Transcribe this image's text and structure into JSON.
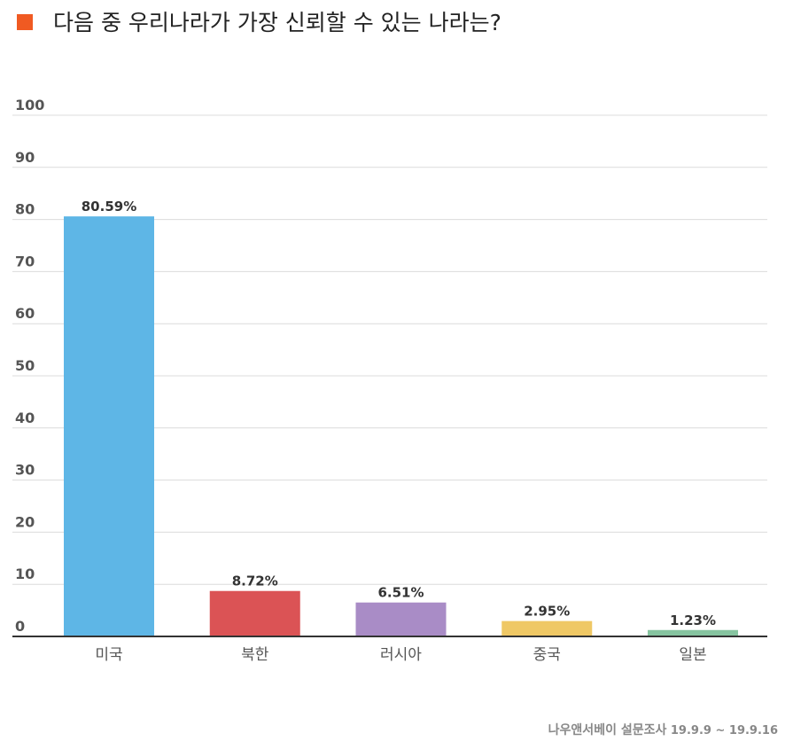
{
  "title": "다음 중 우리나라가 가장 신뢰할 수 있는 나라는?",
  "accent_color": "#F05A22",
  "source": {
    "org": "나우앤서베이 설문조사",
    "period": "19.9.9 ~ 19.9.16"
  },
  "chart_data": {
    "type": "bar",
    "title": "다음 중 우리나라가 가장 신뢰할 수 있는 나라는?",
    "categories": [
      "미국",
      "북한",
      "러시아",
      "중국",
      "일본"
    ],
    "values": [
      80.59,
      8.72,
      6.51,
      2.95,
      1.23
    ],
    "value_labels": [
      "80.59%",
      "8.72%",
      "6.51%",
      "2.95%",
      "1.23%"
    ],
    "colors": [
      "#5EB6E6",
      "#DB5355",
      "#A98CC6",
      "#EFC865",
      "#86C4A0"
    ],
    "ylim": [
      0,
      100
    ],
    "yticks": [
      "0",
      "10",
      "20",
      "30",
      "40",
      "50",
      "60",
      "70",
      "80",
      "90",
      "100"
    ],
    "grid": true,
    "legend": "none",
    "xlabel": "",
    "ylabel": ""
  }
}
